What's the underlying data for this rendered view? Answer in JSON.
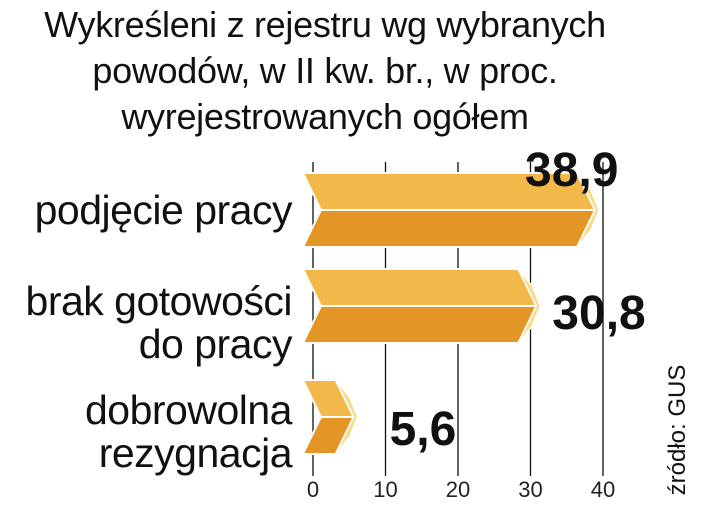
{
  "chart_data": {
    "type": "bar",
    "orientation": "horizontal",
    "title": [
      "Wykreśleni z rejestru wg wybranych",
      "powodów, w II kw. br., w proc.",
      "wyrejestrowanych ogółem"
    ],
    "categories": [
      [
        "podjęcie pracy"
      ],
      [
        "brak gotowości",
        "do pracy"
      ],
      [
        "dobrowolna",
        "rezygnacja"
      ]
    ],
    "values": [
      38.9,
      30.8,
      5.6
    ],
    "value_labels": [
      "38,9",
      "30,8",
      "5,6"
    ],
    "xlim": [
      0,
      40
    ],
    "xticks": [
      0,
      10,
      20,
      30,
      40
    ],
    "grid": true,
    "source": "źródło: GUS",
    "colors": {
      "bar_top": "#f2b84a",
      "bar_bottom": "#e39525",
      "bar_end": "#f9dc8a",
      "bar_edge": "#ffffff",
      "grid": "#111111"
    }
  }
}
